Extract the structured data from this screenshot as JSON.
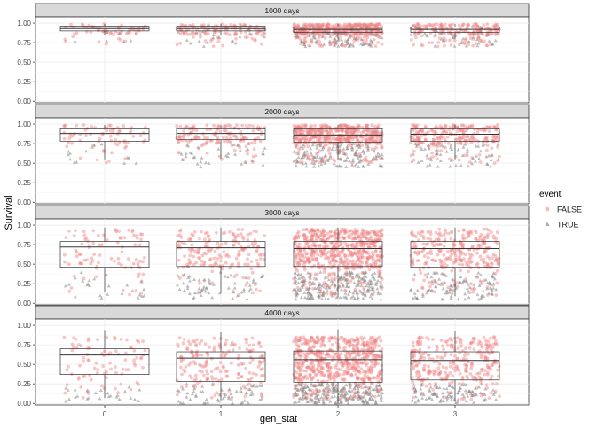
{
  "chart_data": {
    "type": "scatter",
    "subtype": "faceted jittered points with boxplots",
    "xlabel": "gen_stat",
    "ylabel": "Survival",
    "categories": [
      "0",
      "1",
      "2",
      "3"
    ],
    "yticks": [
      "0.00",
      "0.25",
      "0.50",
      "0.75",
      "1.00"
    ],
    "ylim": [
      -0.02,
      1.08
    ],
    "grid": true,
    "legend": {
      "title": "event",
      "position": "right",
      "entries": [
        {
          "label": "FALSE",
          "shape": "circle",
          "color": "#f08080"
        },
        {
          "label": "TRUE",
          "shape": "triangle",
          "color": "#8a8a8a"
        }
      ]
    },
    "colors": {
      "FALSE": "#f08080",
      "TRUE": "#8a8a8a",
      "strip": "#d9d9d9",
      "grid": "#ebebeb"
    },
    "panels": [
      {
        "title": "1000 days",
        "boxes": [
          {
            "category": "0",
            "q1": 0.9,
            "median": 0.93,
            "q3": 0.96,
            "whisker_low": 0.84,
            "whisker_high": 0.99
          },
          {
            "category": "1",
            "q1": 0.9,
            "median": 0.93,
            "q3": 0.96,
            "whisker_low": 0.84,
            "whisker_high": 0.99
          },
          {
            "category": "2",
            "q1": 0.88,
            "median": 0.92,
            "q3": 0.95,
            "whisker_low": 0.8,
            "whisker_high": 0.99
          },
          {
            "category": "3",
            "q1": 0.88,
            "median": 0.92,
            "q3": 0.95,
            "whisker_low": 0.8,
            "whisker_high": 0.99
          }
        ],
        "points": {
          "false_range": [
            0.85,
            0.99
          ],
          "false_range_low": [
            0.7,
            0.85
          ],
          "true_range": [
            0.7,
            0.95
          ],
          "counts_false": [
            60,
            120,
            420,
            200
          ],
          "counts_true": [
            6,
            20,
            90,
            40
          ]
        }
      },
      {
        "title": "2000 days",
        "boxes": [
          {
            "category": "0",
            "q1": 0.78,
            "median": 0.88,
            "q3": 0.94,
            "whisker_low": 0.55,
            "whisker_high": 0.99
          },
          {
            "category": "1",
            "q1": 0.8,
            "median": 0.88,
            "q3": 0.94,
            "whisker_low": 0.56,
            "whisker_high": 0.99
          },
          {
            "category": "2",
            "q1": 0.77,
            "median": 0.86,
            "q3": 0.94,
            "whisker_low": 0.55,
            "whisker_high": 0.99
          },
          {
            "category": "3",
            "q1": 0.78,
            "median": 0.87,
            "q3": 0.94,
            "whisker_low": 0.55,
            "whisker_high": 0.99
          }
        ],
        "points": {
          "false_range": [
            0.75,
            0.99
          ],
          "false_range_low": [
            0.5,
            0.75
          ],
          "true_range": [
            0.45,
            0.75
          ],
          "counts_false": [
            70,
            140,
            480,
            230
          ],
          "counts_true": [
            14,
            35,
            130,
            60
          ]
        }
      },
      {
        "title": "3000 days",
        "boxes": [
          {
            "category": "0",
            "q1": 0.46,
            "median": 0.72,
            "q3": 0.79,
            "whisker_low": 0.14,
            "whisker_high": 0.97
          },
          {
            "category": "1",
            "q1": 0.47,
            "median": 0.71,
            "q3": 0.79,
            "whisker_low": 0.13,
            "whisker_high": 0.97
          },
          {
            "category": "2",
            "q1": 0.47,
            "median": 0.7,
            "q3": 0.79,
            "whisker_low": 0.07,
            "whisker_high": 0.97
          },
          {
            "category": "3",
            "q1": 0.46,
            "median": 0.7,
            "q3": 0.79,
            "whisker_low": 0.09,
            "whisker_high": 0.97
          }
        ],
        "points": {
          "false_range": [
            0.45,
            0.95
          ],
          "false_range_low": [
            0.1,
            0.45
          ],
          "true_range": [
            0.05,
            0.4
          ],
          "counts_false": [
            90,
            180,
            620,
            300
          ],
          "counts_true": [
            25,
            60,
            220,
            100
          ]
        }
      },
      {
        "title": "4000 days",
        "boxes": [
          {
            "category": "0",
            "q1": 0.37,
            "median": 0.62,
            "q3": 0.7,
            "whisker_low": 0.07,
            "whisker_high": 0.94
          },
          {
            "category": "1",
            "q1": 0.28,
            "median": 0.58,
            "q3": 0.66,
            "whisker_low": 0.04,
            "whisker_high": 0.91
          },
          {
            "category": "2",
            "q1": 0.27,
            "median": 0.56,
            "q3": 0.67,
            "whisker_low": 0.01,
            "whisker_high": 0.95
          },
          {
            "category": "3",
            "q1": 0.3,
            "median": 0.55,
            "q3": 0.66,
            "whisker_low": 0.02,
            "whisker_high": 0.93
          }
        ],
        "points": {
          "false_range": [
            0.3,
            0.85
          ],
          "false_range_low": [
            0.05,
            0.3
          ],
          "true_range": [
            0.0,
            0.25
          ],
          "counts_false": [
            90,
            180,
            620,
            300
          ],
          "counts_true": [
            25,
            60,
            220,
            100
          ]
        }
      }
    ]
  }
}
